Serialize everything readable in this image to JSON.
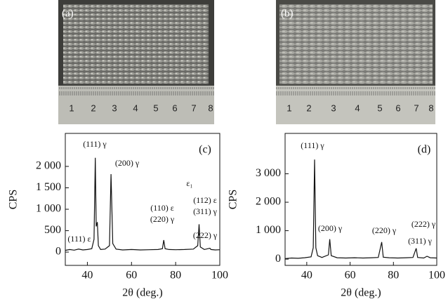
{
  "photos": [
    {
      "label": "(a)",
      "ruler": [
        "1",
        "2",
        "3",
        "4",
        "5",
        "6",
        "7",
        "8"
      ]
    },
    {
      "label": "(b)",
      "ruler": [
        "1",
        "2",
        "3",
        "4",
        "5",
        "6",
        "7",
        "8"
      ]
    }
  ],
  "chart_data": [
    {
      "type": "line",
      "panel": "(c)",
      "x_label": "2θ (deg.)",
      "y_label": "CPS",
      "xlim": [
        30,
        100
      ],
      "xticks": [
        40,
        60,
        80,
        100
      ],
      "ylim": [
        -310,
        2770
      ],
      "yticks": [
        0,
        500,
        {
          "value": 1000,
          "label": "1 000"
        },
        {
          "value": 1500,
          "label": "1 500"
        },
        {
          "value": 2000,
          "label": "2 000"
        }
      ],
      "color": "#111111",
      "x": [
        30,
        32,
        34,
        36,
        38,
        40,
        42,
        43,
        43.6,
        44,
        44.5,
        45,
        46,
        48,
        50,
        50.7,
        51.5,
        53,
        56,
        60,
        64,
        68,
        72,
        74,
        74.6,
        75.2,
        77,
        80,
        84,
        88,
        90,
        90.6,
        91.2,
        93,
        95.5,
        96,
        98,
        100
      ],
      "values": [
        40,
        60,
        45,
        70,
        50,
        60,
        80,
        300,
        2200,
        600,
        700,
        150,
        60,
        70,
        150,
        1820,
        200,
        70,
        50,
        60,
        50,
        55,
        60,
        80,
        280,
        80,
        60,
        55,
        60,
        70,
        150,
        650,
        120,
        60,
        90,
        60,
        50,
        55
      ],
      "annotations": [
        "(111) γ",
        "(200) γ",
        "(110) ε",
        "(220) γ",
        "ε₁",
        "(112) ε",
        "(311) γ",
        "(222) γ",
        "(111) ε"
      ]
    },
    {
      "type": "line",
      "panel": "(d)",
      "x_label": "2θ (deg.)",
      "y_label": "CPS",
      "xlim": [
        30,
        100
      ],
      "xticks": [
        40,
        60,
        80,
        100
      ],
      "ylim": [
        -220,
        4420
      ],
      "yticks": [
        0,
        {
          "value": 1000,
          "label": "1 000"
        },
        {
          "value": 2000,
          "label": "2 000"
        },
        {
          "value": 3000,
          "label": "3 000"
        }
      ],
      "color": "#111111",
      "x": [
        30,
        33,
        36,
        39,
        42,
        43,
        43.6,
        44.2,
        45,
        47,
        50,
        50.6,
        51.3,
        54,
        58,
        62,
        66,
        70,
        73,
        74.6,
        75.3,
        78,
        82,
        86,
        89,
        90.5,
        91.2,
        94,
        95.5,
        97,
        100
      ],
      "values": [
        20,
        40,
        30,
        50,
        80,
        400,
        3500,
        400,
        120,
        60,
        150,
        700,
        120,
        50,
        40,
        50,
        40,
        50,
        60,
        600,
        70,
        50,
        40,
        50,
        60,
        380,
        60,
        40,
        100,
        50,
        40
      ],
      "annotations": [
        "(111) γ",
        "(200) γ",
        "(220) γ",
        "(222) γ",
        "(311) γ"
      ]
    }
  ]
}
